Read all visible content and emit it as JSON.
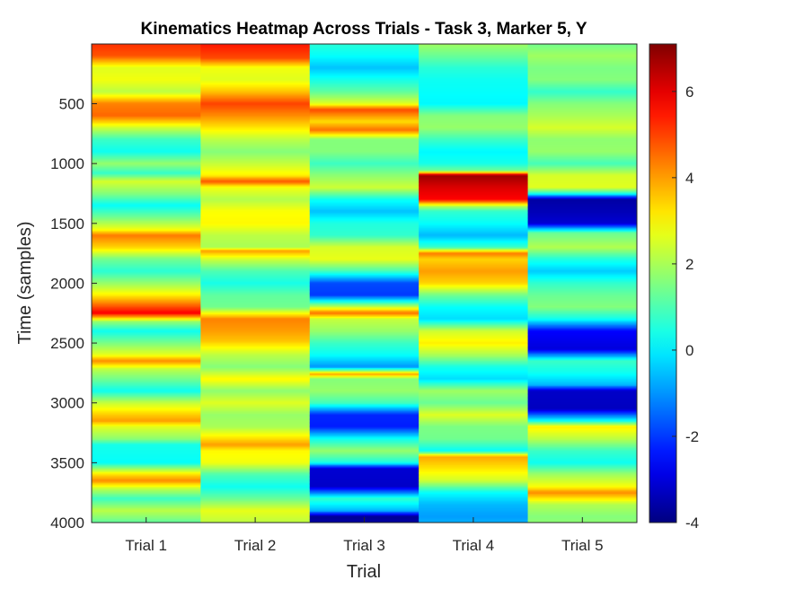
{
  "chart_data": {
    "type": "heatmap",
    "title": "Kinematics Heatmap Across Trials - Task 3, Marker 5, Y",
    "xlabel": "Trial",
    "ylabel": "Time (samples)",
    "x_categories": [
      "Trial 1",
      "Trial 2",
      "Trial 3",
      "Trial 4",
      "Trial 5"
    ],
    "ylim": [
      1,
      4000
    ],
    "y_ticks": [
      500,
      1000,
      1500,
      2000,
      2500,
      3000,
      3500,
      4000
    ],
    "y_tick_labels": [
      "500",
      "1000",
      "1500",
      "2000",
      "2500",
      "3000",
      "3500",
      "4000"
    ],
    "colorbar": {
      "colormap": "jet",
      "clim": [
        -4,
        7.1
      ],
      "ticks": [
        -4,
        -2,
        0,
        2,
        4,
        6
      ],
      "tick_labels": [
        "-4",
        "-2",
        "0",
        "2",
        "4",
        "6"
      ]
    },
    "series": [
      {
        "name": "Trial 1",
        "profile": [
          [
            0,
            5.2
          ],
          [
            100,
            4.8
          ],
          [
            200,
            2.6
          ],
          [
            300,
            2.8
          ],
          [
            400,
            2.2
          ],
          [
            500,
            4.3
          ],
          [
            600,
            4.6
          ],
          [
            700,
            2.4
          ],
          [
            800,
            0.8
          ],
          [
            900,
            0.3
          ],
          [
            1000,
            1.8
          ],
          [
            1080,
            0.7
          ],
          [
            1150,
            2.5
          ],
          [
            1250,
            1.6
          ],
          [
            1350,
            0.2
          ],
          [
            1450,
            1.4
          ],
          [
            1550,
            2.8
          ],
          [
            1600,
            4.4
          ],
          [
            1700,
            3.4
          ],
          [
            1800,
            1.4
          ],
          [
            1900,
            0.6
          ],
          [
            2000,
            1.8
          ],
          [
            2100,
            3.1
          ],
          [
            2150,
            4.0
          ],
          [
            2250,
            5.8
          ],
          [
            2320,
            1.8
          ],
          [
            2400,
            0.3
          ],
          [
            2500,
            1.5
          ],
          [
            2600,
            2.7
          ],
          [
            2650,
            4.2
          ],
          [
            2720,
            2.2
          ],
          [
            2800,
            1.4
          ],
          [
            2900,
            0.3
          ],
          [
            3000,
            2.3
          ],
          [
            3100,
            3.5
          ],
          [
            3150,
            4.0
          ],
          [
            3200,
            2.6
          ],
          [
            3300,
            1.7
          ],
          [
            3350,
            0.4
          ],
          [
            3500,
            0.2
          ],
          [
            3550,
            1.8
          ],
          [
            3600,
            3.3
          ],
          [
            3650,
            4.2
          ],
          [
            3720,
            2.2
          ],
          [
            3800,
            0.8
          ],
          [
            3900,
            2.2
          ],
          [
            4000,
            1.2
          ]
        ]
      },
      {
        "name": "Trial 2",
        "profile": [
          [
            0,
            5.5
          ],
          [
            120,
            4.9
          ],
          [
            200,
            2.8
          ],
          [
            300,
            2.6
          ],
          [
            400,
            3.6
          ],
          [
            500,
            5.0
          ],
          [
            600,
            4.2
          ],
          [
            700,
            3.2
          ],
          [
            800,
            2.2
          ],
          [
            900,
            1.6
          ],
          [
            1000,
            2.3
          ],
          [
            1100,
            3.1
          ],
          [
            1150,
            4.8
          ],
          [
            1200,
            2.8
          ],
          [
            1300,
            2.1
          ],
          [
            1400,
            2.9
          ],
          [
            1500,
            3.0
          ],
          [
            1600,
            2.2
          ],
          [
            1700,
            2.0
          ],
          [
            1730,
            4.0
          ],
          [
            1800,
            2.4
          ],
          [
            1900,
            1.0
          ],
          [
            2000,
            0.4
          ],
          [
            2100,
            1.2
          ],
          [
            2200,
            1.4
          ],
          [
            2300,
            4.3
          ],
          [
            2400,
            4.0
          ],
          [
            2480,
            3.6
          ],
          [
            2600,
            2.2
          ],
          [
            2700,
            1.6
          ],
          [
            2800,
            3.0
          ],
          [
            2900,
            1.7
          ],
          [
            3000,
            2.6
          ],
          [
            3100,
            1.8
          ],
          [
            3200,
            2.0
          ],
          [
            3300,
            3.3
          ],
          [
            3350,
            4.0
          ],
          [
            3400,
            3.0
          ],
          [
            3500,
            2.8
          ],
          [
            3600,
            1.0
          ],
          [
            3700,
            0.3
          ],
          [
            3800,
            1.3
          ],
          [
            3900,
            2.7
          ],
          [
            4000,
            2.2
          ]
        ]
      },
      {
        "name": "Trial 3",
        "profile": [
          [
            0,
            0.6
          ],
          [
            100,
            0.2
          ],
          [
            200,
            -0.5
          ],
          [
            300,
            0.4
          ],
          [
            400,
            1.2
          ],
          [
            500,
            2.6
          ],
          [
            550,
            4.9
          ],
          [
            650,
            3.3
          ],
          [
            720,
            4.5
          ],
          [
            800,
            1.6
          ],
          [
            900,
            1.6
          ],
          [
            1000,
            0.8
          ],
          [
            1100,
            1.7
          ],
          [
            1200,
            2.4
          ],
          [
            1300,
            0.3
          ],
          [
            1400,
            -0.5
          ],
          [
            1500,
            0.5
          ],
          [
            1600,
            0.7
          ],
          [
            1700,
            2.5
          ],
          [
            1800,
            2.7
          ],
          [
            1900,
            0.9
          ],
          [
            2000,
            -1.8
          ],
          [
            2100,
            -2.0
          ],
          [
            2150,
            0.2
          ],
          [
            2250,
            4.5
          ],
          [
            2300,
            2.3
          ],
          [
            2400,
            1.8
          ],
          [
            2500,
            0.8
          ],
          [
            2600,
            0.2
          ],
          [
            2700,
            -1.0
          ],
          [
            2760,
            4.0
          ],
          [
            2800,
            1.6
          ],
          [
            2900,
            1.8
          ],
          [
            3000,
            0.9
          ],
          [
            3100,
            -2.2
          ],
          [
            3200,
            -2.3
          ],
          [
            3300,
            0.3
          ],
          [
            3400,
            1.8
          ],
          [
            3500,
            0.4
          ],
          [
            3550,
            -3.1
          ],
          [
            3700,
            -3.2
          ],
          [
            3800,
            0.7
          ],
          [
            3900,
            -0.6
          ],
          [
            3950,
            -3.8
          ],
          [
            4000,
            -3.6
          ]
        ]
      },
      {
        "name": "Trial 4",
        "profile": [
          [
            0,
            1.9
          ],
          [
            100,
            1.3
          ],
          [
            200,
            0.6
          ],
          [
            300,
            0.3
          ],
          [
            400,
            0.2
          ],
          [
            500,
            0.1
          ],
          [
            600,
            1.6
          ],
          [
            700,
            1.8
          ],
          [
            800,
            0.8
          ],
          [
            900,
            0.1
          ],
          [
            1000,
            0.4
          ],
          [
            1060,
            1.4
          ],
          [
            1100,
            6.8
          ],
          [
            1200,
            6.1
          ],
          [
            1300,
            5.7
          ],
          [
            1360,
            2.0
          ],
          [
            1400,
            0.7
          ],
          [
            1500,
            0.2
          ],
          [
            1600,
            -0.6
          ],
          [
            1700,
            0.8
          ],
          [
            1750,
            4.4
          ],
          [
            1800,
            3.4
          ],
          [
            1900,
            4.0
          ],
          [
            2000,
            3.4
          ],
          [
            2100,
            1.4
          ],
          [
            2200,
            0.2
          ],
          [
            2300,
            -0.2
          ],
          [
            2400,
            2.4
          ],
          [
            2500,
            3.1
          ],
          [
            2600,
            2.0
          ],
          [
            2700,
            0.4
          ],
          [
            2800,
            -0.2
          ],
          [
            2900,
            1.9
          ],
          [
            3000,
            1.3
          ],
          [
            3100,
            2.6
          ],
          [
            3200,
            1.5
          ],
          [
            3300,
            1.4
          ],
          [
            3400,
            0.2
          ],
          [
            3450,
            3.9
          ],
          [
            3550,
            3.2
          ],
          [
            3650,
            2.4
          ],
          [
            3750,
            0.2
          ],
          [
            3850,
            -0.6
          ],
          [
            3950,
            -0.9
          ],
          [
            4000,
            -0.7
          ]
        ]
      },
      {
        "name": "Trial 5",
        "profile": [
          [
            0,
            1.4
          ],
          [
            100,
            1.9
          ],
          [
            200,
            1.5
          ],
          [
            300,
            1.6
          ],
          [
            400,
            0.7
          ],
          [
            500,
            1.6
          ],
          [
            600,
            2.0
          ],
          [
            700,
            2.5
          ],
          [
            800,
            1.7
          ],
          [
            900,
            1.8
          ],
          [
            1000,
            0.9
          ],
          [
            1100,
            2.5
          ],
          [
            1200,
            2.6
          ],
          [
            1250,
            0.5
          ],
          [
            1300,
            -3.6
          ],
          [
            1400,
            -3.4
          ],
          [
            1500,
            -3.1
          ],
          [
            1580,
            1.3
          ],
          [
            1700,
            2.1
          ],
          [
            1800,
            0.5
          ],
          [
            1900,
            -0.4
          ],
          [
            2000,
            0.7
          ],
          [
            2100,
            1.3
          ],
          [
            2200,
            1.6
          ],
          [
            2300,
            0.3
          ],
          [
            2400,
            -2.6
          ],
          [
            2550,
            -3.0
          ],
          [
            2650,
            0.8
          ],
          [
            2750,
            0.3
          ],
          [
            2850,
            -0.6
          ],
          [
            2900,
            -3.2
          ],
          [
            3050,
            -3.3
          ],
          [
            3150,
            0.3
          ],
          [
            3200,
            3.1
          ],
          [
            3300,
            2.2
          ],
          [
            3400,
            0.8
          ],
          [
            3500,
            0.3
          ],
          [
            3600,
            1.9
          ],
          [
            3700,
            2.9
          ],
          [
            3750,
            4.2
          ],
          [
            3850,
            2.1
          ],
          [
            3950,
            1.6
          ],
          [
            4000,
            1.7
          ]
        ]
      }
    ]
  }
}
